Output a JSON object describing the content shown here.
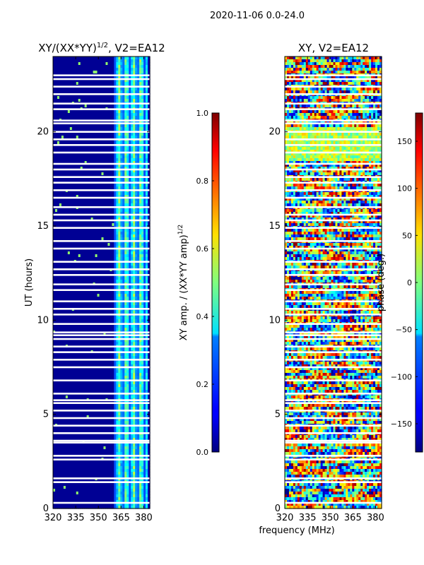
{
  "figure": {
    "suptitle": "2020-11-06 0.0-24.0",
    "shared_xlabel": "frequency (MHz)"
  },
  "chart_data": [
    {
      "type": "heatmap",
      "title_main": "XY/(XX*YY)",
      "title_sup": "1/2",
      "title_rest": ", V2=EA12",
      "ylabel": "UT (hours)",
      "xlim": [
        320,
        384
      ],
      "ylim": [
        0,
        24
      ],
      "xticks": [
        320,
        335,
        350,
        365,
        380
      ],
      "yticks": [
        0,
        5,
        10,
        15,
        20
      ],
      "colorbar": {
        "label": "XY amp. / (XX*YY amp)",
        "label_sup": "1/2",
        "range": [
          0.0,
          1.0
        ],
        "ticks": [
          "0.0",
          "0.2",
          "0.4",
          "0.6",
          "0.8",
          "1.0"
        ],
        "colormap": "jet"
      },
      "description_values": {
        "low_band_mhz": [
          320,
          361
        ],
        "low_band_amp": 0.02,
        "high_band_mhz": [
          361,
          383
        ],
        "high_band_amp_range": [
          0.2,
          0.55
        ]
      },
      "flagged_ut_hours": [
        0.3,
        1.4,
        1.6,
        2.6,
        2.8,
        3.5,
        3.6,
        4.0,
        4.4,
        4.8,
        5.2,
        5.6,
        5.75,
        6.1,
        6.8,
        7.5,
        7.9,
        8.3,
        8.6,
        9.0,
        9.2,
        9.35,
        9.8,
        10.3,
        10.6,
        11.0,
        11.6,
        11.9,
        12.4,
        12.7,
        13.1,
        13.8,
        14.2,
        14.9,
        15.3,
        15.6,
        16.0,
        16.5,
        16.9,
        17.3,
        17.6,
        18.0,
        18.3,
        18.9,
        19.3,
        19.6,
        20.0,
        20.45,
        20.6,
        21.2,
        21.5,
        22.0,
        22.4,
        22.8,
        23.0
      ]
    },
    {
      "type": "heatmap",
      "title_main": "XY, V2=EA12",
      "xlim": [
        320,
        384
      ],
      "ylim": [
        0,
        24
      ],
      "xticks": [
        320,
        335,
        350,
        365,
        380
      ],
      "yticks": [
        0,
        5,
        10,
        15,
        20
      ],
      "colorbar": {
        "label": "phase (deg.)",
        "range": [
          -180,
          180
        ],
        "ticks": [
          "150",
          "100",
          "50",
          "0",
          "−50",
          "−100",
          "−150"
        ],
        "tick_values": [
          150,
          100,
          50,
          0,
          -50,
          -100,
          -150
        ],
        "colormap": "jet"
      },
      "description_values": {
        "phase_range_deg": [
          -180,
          180
        ],
        "pattern": "noisy phase"
      },
      "flagged_ut_hours": [
        0.3,
        1.4,
        1.6,
        2.6,
        2.8,
        3.5,
        3.6,
        4.0,
        4.4,
        4.8,
        5.2,
        5.6,
        5.75,
        6.1,
        6.8,
        7.5,
        7.9,
        8.3,
        8.6,
        9.0,
        9.2,
        9.35,
        9.8,
        10.3,
        10.6,
        11.0,
        11.6,
        11.9,
        12.4,
        12.7,
        13.1,
        13.8,
        14.2,
        14.9,
        15.3,
        15.6,
        16.0,
        16.5,
        16.9,
        17.3,
        17.6,
        18.0,
        18.3,
        18.9,
        19.3,
        19.6,
        20.0,
        20.45,
        20.6,
        21.2,
        21.5,
        22.0,
        22.4,
        22.8,
        23.0
      ]
    }
  ]
}
